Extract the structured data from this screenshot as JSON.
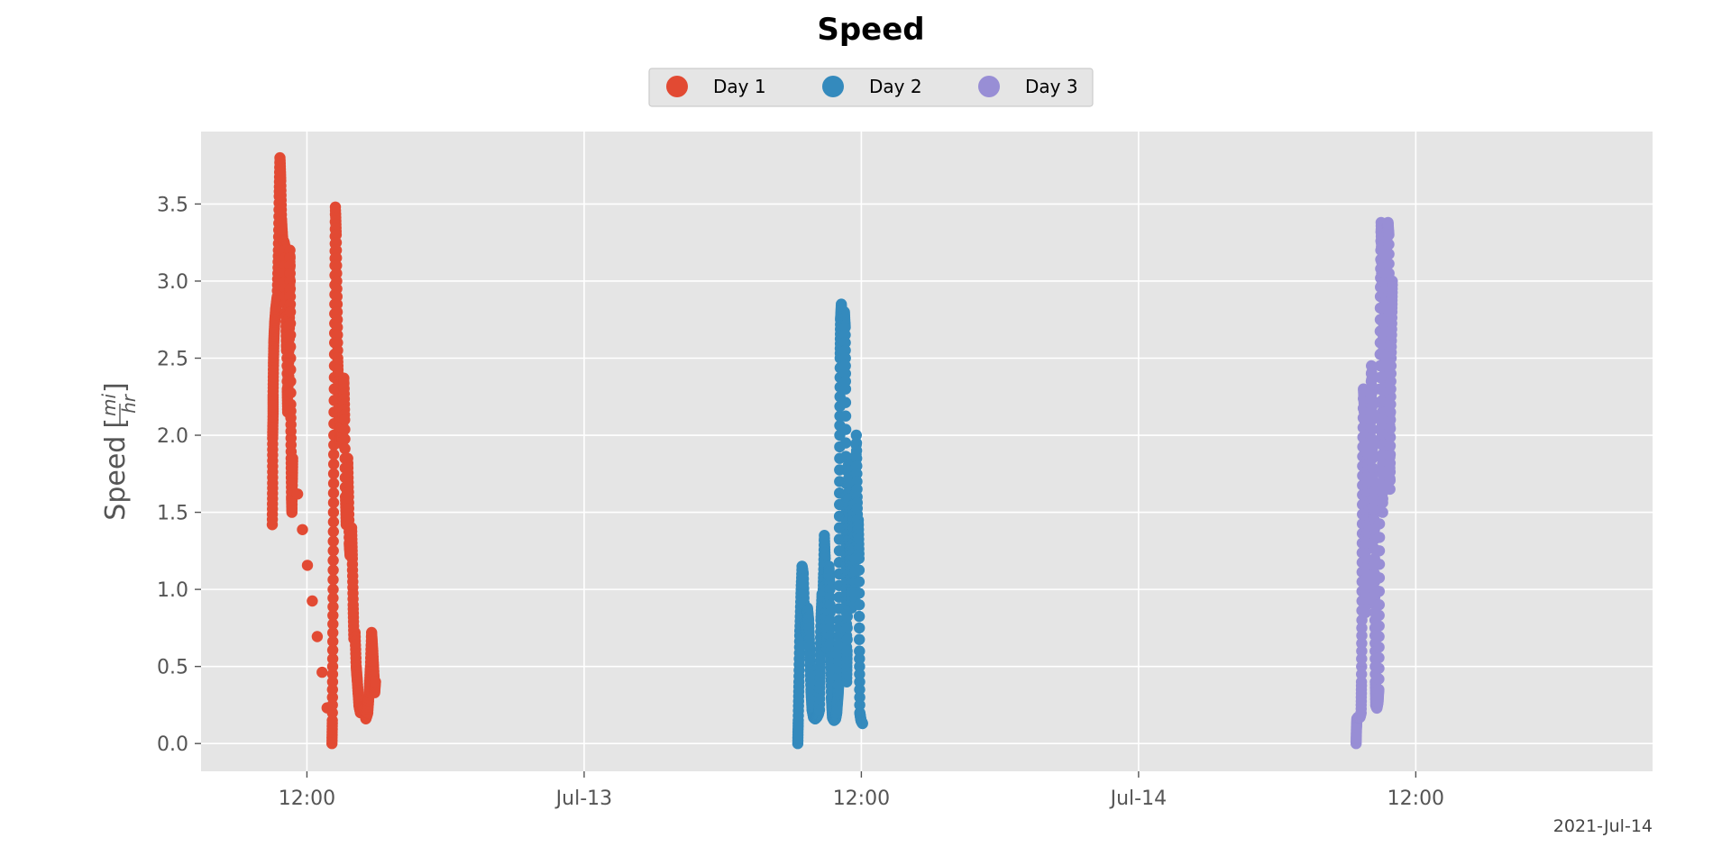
{
  "chart_data": {
    "type": "scatter",
    "title": "Speed",
    "ylabel_text": "Speed",
    "ylabel_unit_num": "mi",
    "ylabel_unit_den": "hr",
    "x_offset_label": "2021-Jul-14",
    "x_axis_kind": "datetime",
    "xlim": [
      "2021-07-12T07:25",
      "2021-07-14T22:15"
    ],
    "ylim": [
      -0.18,
      3.97
    ],
    "x_ticks": [
      {
        "x": "2021-07-12T12:00",
        "label": "12:00"
      },
      {
        "x": "2021-07-13T00:00",
        "label": "Jul-13"
      },
      {
        "x": "2021-07-13T12:00",
        "label": "12:00"
      },
      {
        "x": "2021-07-14T00:00",
        "label": "Jul-14"
      },
      {
        "x": "2021-07-14T12:00",
        "label": "12:00"
      }
    ],
    "y_ticks": [
      {
        "y": 0.0,
        "label": "0.0"
      },
      {
        "y": 0.5,
        "label": "0.5"
      },
      {
        "y": 1.0,
        "label": "1.0"
      },
      {
        "y": 1.5,
        "label": "1.5"
      },
      {
        "y": 2.0,
        "label": "2.0"
      },
      {
        "y": 2.5,
        "label": "2.5"
      },
      {
        "y": 3.0,
        "label": "3.0"
      },
      {
        "y": 3.5,
        "label": "3.5"
      }
    ],
    "grid": true,
    "legend_position": "top-center",
    "series": [
      {
        "name": "Day 1",
        "color": "#E24A33",
        "points": [
          [
            "2021-07-12T10:30",
            1.42
          ],
          [
            "2021-07-12T10:31",
            1.69
          ],
          [
            "2021-07-12T10:31",
            1.98
          ],
          [
            "2021-07-12T10:32",
            2.14
          ],
          [
            "2021-07-12T10:32",
            2.26
          ],
          [
            "2021-07-12T10:33",
            2.45
          ],
          [
            "2021-07-12T10:34",
            2.6
          ],
          [
            "2021-07-12T10:36",
            2.72
          ],
          [
            "2021-07-12T10:39",
            2.82
          ],
          [
            "2021-07-12T10:43",
            2.9
          ],
          [
            "2021-07-12T10:46",
            3.2
          ],
          [
            "2021-07-12T10:48",
            3.55
          ],
          [
            "2021-07-12T10:50",
            3.8
          ],
          [
            "2021-07-12T10:52",
            3.65
          ],
          [
            "2021-07-12T10:54",
            3.4
          ],
          [
            "2021-07-12T10:57",
            3.27
          ],
          [
            "2021-07-12T11:01",
            3.25
          ],
          [
            "2021-07-12T11:04",
            3.2
          ],
          [
            "2021-07-12T11:05",
            2.8
          ],
          [
            "2021-07-12T11:07",
            2.55
          ],
          [
            "2021-07-12T11:08",
            2.7
          ],
          [
            "2021-07-12T11:09",
            2.3
          ],
          [
            "2021-07-12T11:10",
            2.15
          ],
          [
            "2021-07-12T11:12",
            2.6
          ],
          [
            "2021-07-12T11:13",
            2.35
          ],
          [
            "2021-07-12T11:15",
            2.9
          ],
          [
            "2021-07-12T11:16",
            3.2
          ],
          [
            "2021-07-12T11:17",
            2.8
          ],
          [
            "2021-07-12T11:18",
            2.2
          ],
          [
            "2021-07-12T11:19",
            1.85
          ],
          [
            "2021-07-12T11:20",
            1.6
          ],
          [
            "2021-07-12T11:21",
            1.5
          ],
          [
            "2021-07-12T11:22",
            1.7
          ],
          [
            "2021-07-12T11:23",
            1.85
          ],
          [
            "2021-07-12T13:05",
            0.0
          ],
          [
            "2021-07-12T13:06",
            0.15
          ],
          [
            "2021-07-12T13:07",
            0.55
          ],
          [
            "2021-07-12T13:08",
            1.0
          ],
          [
            "2021-07-12T13:09",
            1.5
          ],
          [
            "2021-07-12T13:10",
            2.0
          ],
          [
            "2021-07-12T13:12",
            2.6
          ],
          [
            "2021-07-12T13:13",
            3.1
          ],
          [
            "2021-07-12T13:14",
            3.48
          ],
          [
            "2021-07-12T13:16",
            3.3
          ],
          [
            "2021-07-12T13:18",
            2.9
          ],
          [
            "2021-07-12T13:20",
            2.5
          ],
          [
            "2021-07-12T13:22",
            2.3
          ],
          [
            "2021-07-12T13:24",
            2.05
          ],
          [
            "2021-07-12T13:26",
            1.95
          ],
          [
            "2021-07-12T13:28",
            2.1
          ],
          [
            "2021-07-12T13:30",
            2.0
          ],
          [
            "2021-07-12T13:32",
            1.95
          ],
          [
            "2021-07-12T13:34",
            2.2
          ],
          [
            "2021-07-12T13:36",
            2.37
          ],
          [
            "2021-07-12T13:38",
            2.1
          ],
          [
            "2021-07-12T13:40",
            1.6
          ],
          [
            "2021-07-12T13:42",
            1.42
          ],
          [
            "2021-07-12T13:44",
            1.5
          ],
          [
            "2021-07-12T13:46",
            1.85
          ],
          [
            "2021-07-12T13:48",
            1.6
          ],
          [
            "2021-07-12T13:50",
            1.3
          ],
          [
            "2021-07-12T13:52",
            1.22
          ],
          [
            "2021-07-12T13:54",
            1.3
          ],
          [
            "2021-07-12T13:56",
            1.4
          ],
          [
            "2021-07-12T13:58",
            1.2
          ],
          [
            "2021-07-12T14:00",
            0.9
          ],
          [
            "2021-07-12T14:02",
            0.68
          ],
          [
            "2021-07-12T14:05",
            0.72
          ],
          [
            "2021-07-12T14:08",
            0.5
          ],
          [
            "2021-07-12T14:11",
            0.4
          ],
          [
            "2021-07-12T14:15",
            0.25
          ],
          [
            "2021-07-12T14:19",
            0.2
          ],
          [
            "2021-07-12T14:24",
            0.24
          ],
          [
            "2021-07-12T14:29",
            0.22
          ],
          [
            "2021-07-12T14:33",
            0.16
          ],
          [
            "2021-07-12T14:38",
            0.2
          ],
          [
            "2021-07-12T14:42",
            0.35
          ],
          [
            "2021-07-12T14:45",
            0.5
          ],
          [
            "2021-07-12T14:48",
            0.72
          ],
          [
            "2021-07-12T14:51",
            0.6
          ],
          [
            "2021-07-12T14:54",
            0.45
          ],
          [
            "2021-07-12T14:56",
            0.33
          ],
          [
            "2021-07-12T14:58",
            0.4
          ]
        ]
      },
      {
        "name": "Day 2",
        "color": "#348ABD",
        "points": [
          [
            "2021-07-13T09:15",
            0.0
          ],
          [
            "2021-07-13T09:16",
            0.15
          ],
          [
            "2021-07-13T09:18",
            0.4
          ],
          [
            "2021-07-13T09:20",
            0.7
          ],
          [
            "2021-07-13T09:23",
            0.95
          ],
          [
            "2021-07-13T09:26",
            1.15
          ],
          [
            "2021-07-13T09:29",
            1.1
          ],
          [
            "2021-07-13T09:32",
            0.85
          ],
          [
            "2021-07-13T09:34",
            0.72
          ],
          [
            "2021-07-13T09:37",
            0.8
          ],
          [
            "2021-07-13T09:40",
            0.88
          ],
          [
            "2021-07-13T09:43",
            0.8
          ],
          [
            "2021-07-13T09:46",
            0.6
          ],
          [
            "2021-07-13T09:49",
            0.35
          ],
          [
            "2021-07-13T09:52",
            0.22
          ],
          [
            "2021-07-13T09:56",
            0.17
          ],
          [
            "2021-07-13T10:00",
            0.16
          ],
          [
            "2021-07-13T10:04",
            0.17
          ],
          [
            "2021-07-13T10:08",
            0.19
          ],
          [
            "2021-07-13T10:11",
            0.22
          ],
          [
            "2021-07-13T10:13",
            0.5
          ],
          [
            "2021-07-13T10:15",
            0.8
          ],
          [
            "2021-07-13T10:18",
            0.97
          ],
          [
            "2021-07-13T10:20",
            0.9
          ],
          [
            "2021-07-13T10:22",
            1.1
          ],
          [
            "2021-07-13T10:24",
            1.35
          ],
          [
            "2021-07-13T10:26",
            1.2
          ],
          [
            "2021-07-13T10:28",
            0.85
          ],
          [
            "2021-07-13T10:30",
            0.6
          ],
          [
            "2021-07-13T10:32",
            0.75
          ],
          [
            "2021-07-13T10:34",
            1.05
          ],
          [
            "2021-07-13T10:36",
            1.15
          ],
          [
            "2021-07-13T10:38",
            1.0
          ],
          [
            "2021-07-13T10:40",
            0.6
          ],
          [
            "2021-07-13T10:42",
            0.3
          ],
          [
            "2021-07-13T10:45",
            0.17
          ],
          [
            "2021-07-13T10:49",
            0.15
          ],
          [
            "2021-07-13T10:53",
            0.16
          ],
          [
            "2021-07-13T10:56",
            0.2
          ],
          [
            "2021-07-13T10:59",
            0.3
          ],
          [
            "2021-07-13T11:01",
            0.38
          ],
          [
            "2021-07-13T11:02",
            0.8
          ],
          [
            "2021-07-13T11:03",
            1.4
          ],
          [
            "2021-07-13T11:04",
            2.0
          ],
          [
            "2021-07-13T11:05",
            2.5
          ],
          [
            "2021-07-13T11:06",
            2.75
          ],
          [
            "2021-07-13T11:08",
            2.85
          ],
          [
            "2021-07-13T11:10",
            2.7
          ],
          [
            "2021-07-13T11:12",
            2.4
          ],
          [
            "2021-07-13T11:14",
            2.55
          ],
          [
            "2021-07-13T11:16",
            2.8
          ],
          [
            "2021-07-13T11:18",
            2.7
          ],
          [
            "2021-07-13T11:19",
            2.3
          ],
          [
            "2021-07-13T11:20",
            1.6
          ],
          [
            "2021-07-13T11:21",
            1.0
          ],
          [
            "2021-07-13T11:22",
            0.4
          ],
          [
            "2021-07-13T11:23",
            0.6
          ],
          [
            "2021-07-13T11:24",
            1.2
          ],
          [
            "2021-07-13T11:26",
            1.85
          ],
          [
            "2021-07-13T11:28",
            1.5
          ],
          [
            "2021-07-13T11:29",
            1.15
          ],
          [
            "2021-07-13T11:31",
            1.3
          ],
          [
            "2021-07-13T11:33",
            1.1
          ],
          [
            "2021-07-13T11:35",
            0.88
          ],
          [
            "2021-07-13T11:37",
            1.2
          ],
          [
            "2021-07-13T11:39",
            1.55
          ],
          [
            "2021-07-13T11:41",
            1.3
          ],
          [
            "2021-07-13T11:43",
            0.9
          ],
          [
            "2021-07-13T11:45",
            1.5
          ],
          [
            "2021-07-13T11:47",
            2.0
          ],
          [
            "2021-07-13T11:49",
            1.6
          ],
          [
            "2021-07-13T11:50",
            1.3
          ],
          [
            "2021-07-13T11:52",
            1.45
          ],
          [
            "2021-07-13T11:54",
            1.2
          ],
          [
            "2021-07-13T11:55",
            0.6
          ],
          [
            "2021-07-13T11:56",
            0.2
          ],
          [
            "2021-07-13T11:59",
            0.15
          ],
          [
            "2021-07-13T12:03",
            0.13
          ]
        ]
      },
      {
        "name": "Day 3",
        "color": "#988ED5",
        "points": [
          [
            "2021-07-14T09:25",
            0.0
          ],
          [
            "2021-07-14T09:26",
            0.1
          ],
          [
            "2021-07-14T09:27",
            0.16
          ],
          [
            "2021-07-14T09:30",
            0.17
          ],
          [
            "2021-07-14T09:35",
            0.17
          ],
          [
            "2021-07-14T09:38",
            0.2
          ],
          [
            "2021-07-14T09:39",
            0.4
          ],
          [
            "2021-07-14T09:40",
            0.8
          ],
          [
            "2021-07-14T09:41",
            1.3
          ],
          [
            "2021-07-14T09:42",
            1.8
          ],
          [
            "2021-07-14T09:44",
            2.3
          ],
          [
            "2021-07-14T09:46",
            2.2
          ],
          [
            "2021-07-14T09:48",
            1.8
          ],
          [
            "2021-07-14T09:49",
            1.4
          ],
          [
            "2021-07-14T09:50",
            0.85
          ],
          [
            "2021-07-14T09:51",
            1.2
          ],
          [
            "2021-07-14T09:53",
            1.6
          ],
          [
            "2021-07-14T09:55",
            1.88
          ],
          [
            "2021-07-14T09:57",
            1.6
          ],
          [
            "2021-07-14T09:59",
            1.35
          ],
          [
            "2021-07-14T10:01",
            1.5
          ],
          [
            "2021-07-14T10:03",
            2.05
          ],
          [
            "2021-07-14T10:05",
            2.45
          ],
          [
            "2021-07-14T10:07",
            2.1
          ],
          [
            "2021-07-14T10:08",
            1.6
          ],
          [
            "2021-07-14T10:10",
            1.45
          ],
          [
            "2021-07-14T10:12",
            1.7
          ],
          [
            "2021-07-14T10:13",
            1.2
          ],
          [
            "2021-07-14T10:14",
            0.8
          ],
          [
            "2021-07-14T10:15",
            0.4
          ],
          [
            "2021-07-14T10:16",
            0.25
          ],
          [
            "2021-07-14T10:19",
            0.23
          ],
          [
            "2021-07-14T10:22",
            0.27
          ],
          [
            "2021-07-14T10:24",
            0.35
          ],
          [
            "2021-07-14T10:25",
            0.9
          ],
          [
            "2021-07-14T10:26",
            1.6
          ],
          [
            "2021-07-14T10:27",
            2.3
          ],
          [
            "2021-07-14T10:28",
            2.9
          ],
          [
            "2021-07-14T10:30",
            3.38
          ],
          [
            "2021-07-14T10:31",
            3.2
          ],
          [
            "2021-07-14T10:32",
            2.6
          ],
          [
            "2021-07-14T10:33",
            2.0
          ],
          [
            "2021-07-14T10:34",
            1.5
          ],
          [
            "2021-07-14T10:35",
            2.2
          ],
          [
            "2021-07-14T10:36",
            2.9
          ],
          [
            "2021-07-14T10:38",
            3.3
          ],
          [
            "2021-07-14T10:39",
            2.8
          ],
          [
            "2021-07-14T10:40",
            2.2
          ],
          [
            "2021-07-14T10:41",
            2.0
          ],
          [
            "2021-07-14T10:42",
            2.6
          ],
          [
            "2021-07-14T10:44",
            3.2
          ],
          [
            "2021-07-14T10:46",
            3.35
          ],
          [
            "2021-07-14T10:48",
            3.38
          ],
          [
            "2021-07-14T10:50",
            3.3
          ],
          [
            "2021-07-14T10:51",
            2.8
          ],
          [
            "2021-07-14T10:52",
            2.2
          ],
          [
            "2021-07-14T10:53",
            1.65
          ],
          [
            "2021-07-14T10:54",
            2.1
          ],
          [
            "2021-07-14T10:56",
            2.5
          ],
          [
            "2021-07-14T10:58",
            2.8
          ],
          [
            "2021-07-14T10:59",
            3.0
          ]
        ]
      }
    ]
  }
}
